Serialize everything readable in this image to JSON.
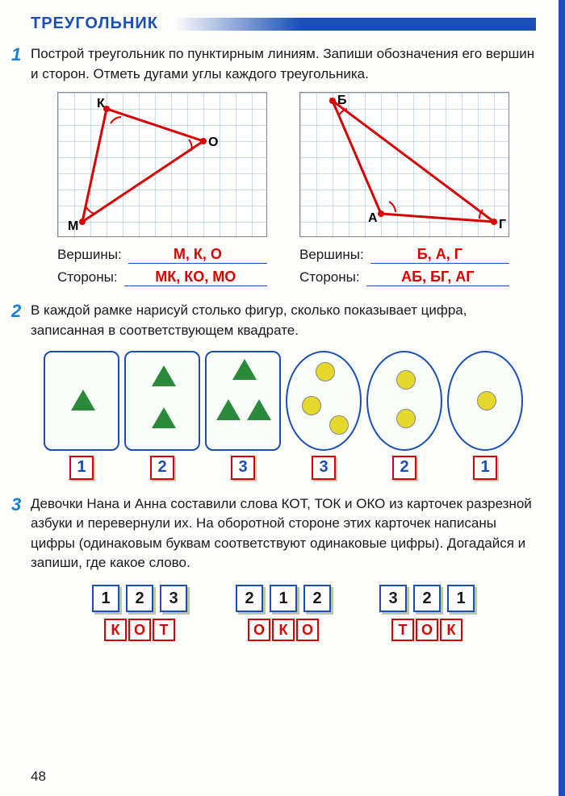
{
  "header": {
    "title": "ТРЕУГОЛЬНИК"
  },
  "task1": {
    "num": "1",
    "text": "Построй треугольник по пунктирным линиям. Запиши обозначения его вершин и сторон. Отметь дугами углы каждого треугольника.",
    "left": {
      "vertices_label": "Вершины:",
      "vertices": "М, К, О",
      "sides_label": "Стороны:",
      "sides": "МК, КО, МО",
      "points": {
        "K": "К",
        "O": "О",
        "M": "М"
      }
    },
    "right": {
      "vertices_label": "Вершины:",
      "vertices": "Б, А, Г",
      "sides_label": "Стороны:",
      "sides": "АБ, БГ, АГ",
      "points": {
        "B": "Б",
        "A": "А",
        "G": "Г"
      }
    },
    "colors": {
      "line": "#d80000",
      "grid": "#8fb8e8",
      "label": "#000"
    }
  },
  "task2": {
    "num": "2",
    "text": "В каждой рамке нарисуй столько фигур, сколько показывает цифра, записанная в соответствующем квадрате.",
    "frames": [
      {
        "type": "rect",
        "shape": "triangle",
        "count": 1,
        "label": "1"
      },
      {
        "type": "rect",
        "shape": "triangle",
        "count": 2,
        "label": "2"
      },
      {
        "type": "rect",
        "shape": "triangle",
        "count": 3,
        "label": "3"
      },
      {
        "type": "oval",
        "shape": "circle",
        "count": 3,
        "label": "3"
      },
      {
        "type": "oval",
        "shape": "circle",
        "count": 2,
        "label": "2"
      },
      {
        "type": "oval",
        "shape": "circle",
        "count": 1,
        "label": "1"
      }
    ],
    "colors": {
      "triangle": "#2a8a3a",
      "circle": "#e6d82a",
      "frame": "#1a4fb5",
      "numbox": "#d80000"
    }
  },
  "task3": {
    "num": "3",
    "text": "Девочки Нана и Анна составили слова КОТ, ТОК и ОКО из карточек разрезной азбуки и перевернули их. На оборотной стороне этих карточек написаны цифры (одинаковым буквам соответствуют одинаковые цифры). Догадайся и запиши, где какое слово.",
    "groups": [
      {
        "nums": [
          "1",
          "2",
          "3"
        ],
        "letters": [
          "К",
          "О",
          "Т"
        ]
      },
      {
        "nums": [
          "2",
          "1",
          "2"
        ],
        "letters": [
          "О",
          "К",
          "О"
        ]
      },
      {
        "nums": [
          "3",
          "2",
          "1"
        ],
        "letters": [
          "Т",
          "О",
          "К"
        ]
      }
    ]
  },
  "page": "48"
}
